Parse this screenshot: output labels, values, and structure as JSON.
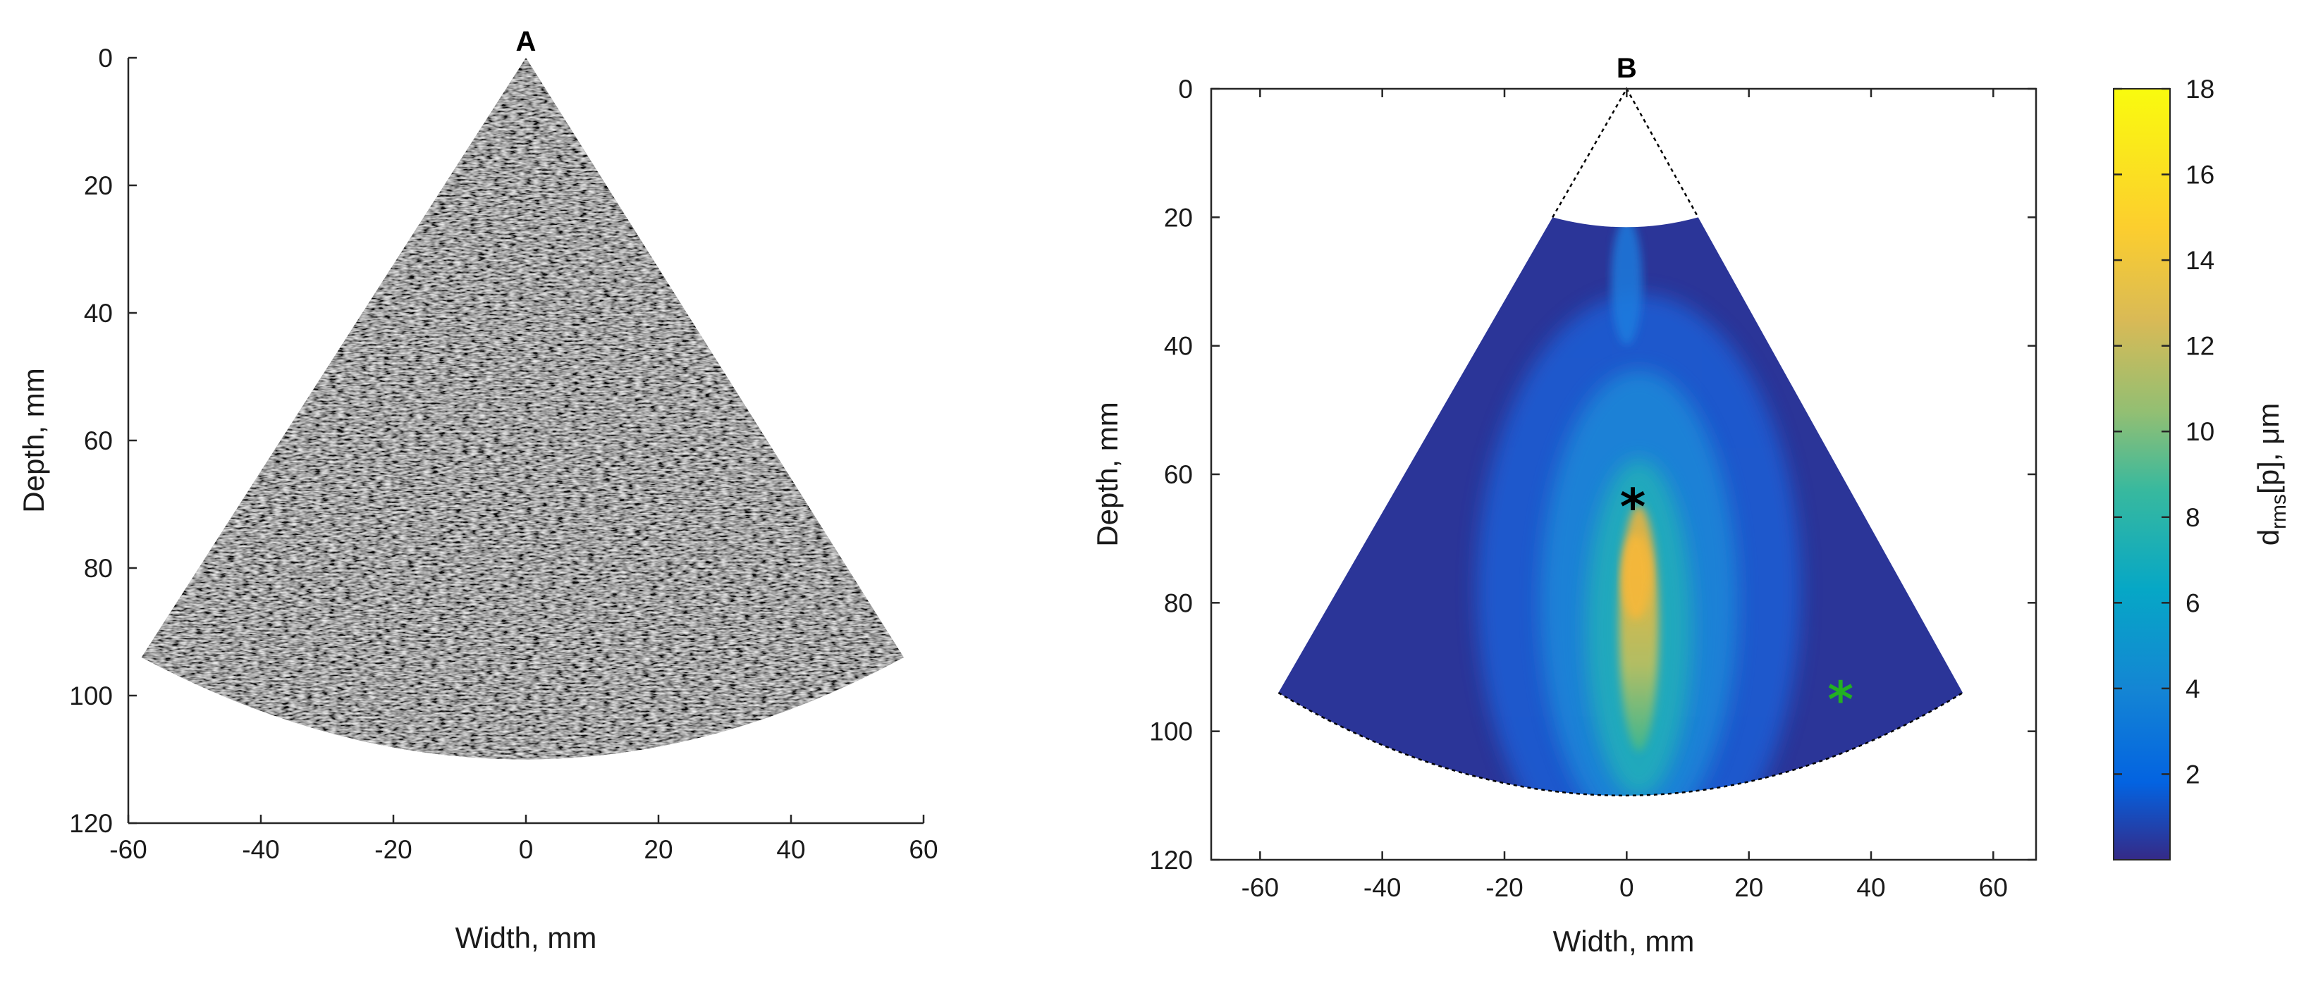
{
  "chart_data": [
    {
      "type": "heatmap",
      "title": "A",
      "xlabel": "Width, mm",
      "ylabel": "Depth, mm",
      "xlim": [
        -60,
        60
      ],
      "ylim": [
        0,
        120
      ],
      "y_reversed": true,
      "x_ticks": [
        -60,
        -40,
        -20,
        0,
        20,
        40,
        60
      ],
      "y_ticks": [
        0,
        20,
        40,
        60,
        80,
        100,
        120
      ],
      "x_tick_labels": [
        "-60",
        "-40",
        "-20",
        "0",
        "20",
        "40",
        "60"
      ],
      "y_tick_labels": [
        "0",
        "20",
        "40",
        "60",
        "80",
        "100",
        "120"
      ],
      "colormap": "gray",
      "image": "B-mode ultrasound speckle",
      "sector": {
        "apex": [
          0,
          0
        ],
        "edge_left": [
          -58,
          94
        ],
        "edge_right": [
          57,
          94
        ],
        "max_depth": 110
      }
    },
    {
      "type": "heatmap",
      "title": "B",
      "xlabel": "Width, mm",
      "ylabel": "Depth, mm",
      "xlim": [
        -68,
        67
      ],
      "ylim": [
        0,
        120
      ],
      "y_reversed": true,
      "x_ticks": [
        -60,
        -40,
        -20,
        0,
        20,
        40,
        60
      ],
      "y_ticks": [
        0,
        20,
        40,
        60,
        80,
        100,
        120
      ],
      "x_tick_labels": [
        "-60",
        "-40",
        "-20",
        "0",
        "20",
        "40",
        "60"
      ],
      "y_tick_labels": [
        "0",
        "20",
        "40",
        "60",
        "80",
        "100",
        "120"
      ],
      "colormap": "parula",
      "colorbar": {
        "label_main": "d",
        "label_sub": "rms",
        "label_rest": "[p], μm",
        "range": [
          0,
          18
        ],
        "ticks": [
          2,
          4,
          6,
          8,
          10,
          12,
          14,
          16,
          18
        ],
        "tick_labels": [
          "2",
          "4",
          "6",
          "8",
          "10",
          "12",
          "14",
          "16",
          "18"
        ],
        "position": "right"
      },
      "sector": {
        "apex": [
          0,
          0
        ],
        "min_depth": 20,
        "max_depth": 110,
        "edge_left": [
          -57,
          94
        ],
        "edge_right": [
          55,
          94
        ]
      },
      "field_description": {
        "background_level": 1.0,
        "peak_level": 15,
        "peak_center": [
          2,
          80
        ]
      },
      "markers": [
        {
          "x": 1,
          "y": 65,
          "color": "#000000",
          "symbol": "*"
        },
        {
          "x": 35,
          "y": 95,
          "color": "#22b022",
          "symbol": "*"
        }
      ]
    }
  ]
}
